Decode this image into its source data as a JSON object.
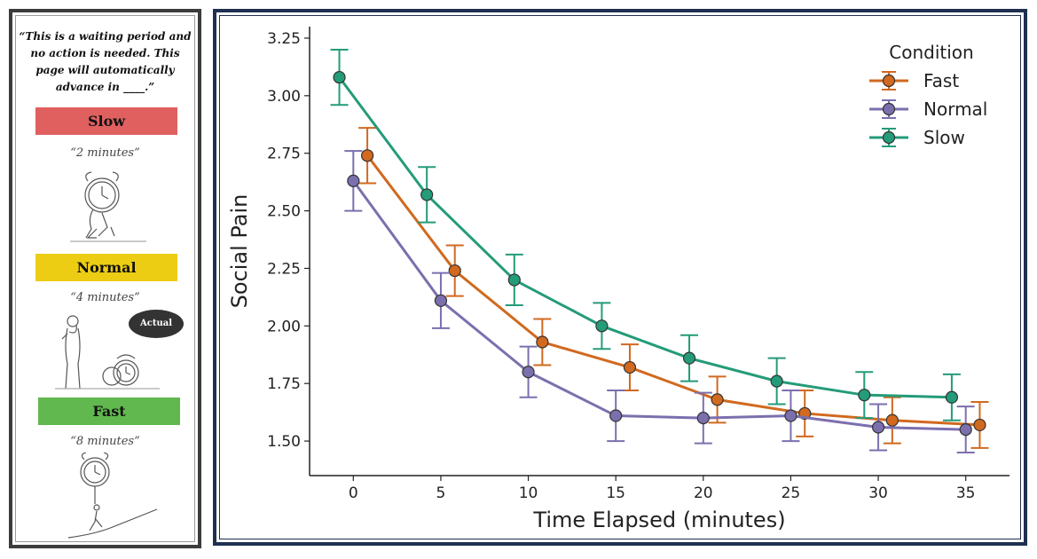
{
  "left_panel": {
    "quote": "“This is a waiting period and no action is needed. This page will automatically advance in ____.”",
    "conditions": [
      {
        "label": "Slow",
        "duration": "“2 minutes”",
        "color": "#e06060"
      },
      {
        "label": "Normal",
        "duration": "“4 minutes”",
        "color": "#eccd13"
      },
      {
        "label": "Fast",
        "duration": "“8 minutes”",
        "color": "#61b84f"
      }
    ],
    "actual_badge": "Actual"
  },
  "chart_data": {
    "type": "line",
    "xlabel": "Time Elapsed (minutes)",
    "ylabel": "Social Pain",
    "xlim": [
      -2.5,
      37.5
    ],
    "ylim": [
      1.35,
      3.3
    ],
    "xticks": [
      0,
      5,
      10,
      15,
      20,
      25,
      30,
      35
    ],
    "yticks": [
      1.5,
      1.75,
      2.0,
      2.25,
      2.5,
      2.75,
      3.0,
      3.25
    ],
    "legend_title": "Condition",
    "legend_position": "top-right",
    "series": [
      {
        "name": "Fast",
        "color": "#d1691f",
        "x": [
          0.8,
          5.8,
          10.8,
          15.8,
          20.8,
          25.8,
          30.8,
          35.8
        ],
        "y": [
          2.74,
          2.24,
          1.93,
          1.82,
          1.68,
          1.62,
          1.59,
          1.57
        ],
        "err": [
          0.12,
          0.11,
          0.1,
          0.1,
          0.1,
          0.1,
          0.1,
          0.1
        ]
      },
      {
        "name": "Normal",
        "color": "#7c6fae",
        "x": [
          0,
          5,
          10,
          15,
          20,
          25,
          30,
          35
        ],
        "y": [
          2.63,
          2.11,
          1.8,
          1.61,
          1.6,
          1.61,
          1.56,
          1.55
        ],
        "err": [
          0.13,
          0.12,
          0.11,
          0.11,
          0.11,
          0.11,
          0.1,
          0.1
        ]
      },
      {
        "name": "Slow",
        "color": "#249b79",
        "x": [
          -0.8,
          4.2,
          9.2,
          14.2,
          19.2,
          24.2,
          29.2,
          34.2
        ],
        "y": [
          3.08,
          2.57,
          2.2,
          2.0,
          1.86,
          1.76,
          1.7,
          1.69
        ],
        "err": [
          0.12,
          0.12,
          0.11,
          0.1,
          0.1,
          0.1,
          0.1,
          0.1
        ]
      }
    ]
  }
}
